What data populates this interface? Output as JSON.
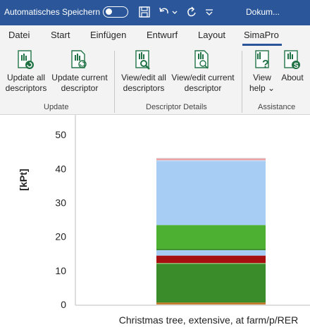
{
  "titlebar": {
    "autosave_label": "Automatisches Speichern",
    "doc_title": "Dokum..."
  },
  "tabs": [
    {
      "label": "Datei"
    },
    {
      "label": "Start"
    },
    {
      "label": "Einfügen"
    },
    {
      "label": "Entwurf"
    },
    {
      "label": "Layout"
    },
    {
      "label": "SimaPro",
      "active": true
    }
  ],
  "ribbon": {
    "groups": [
      {
        "label": "Update",
        "buttons": [
          {
            "line1": "Update all",
            "line2": "descriptors",
            "icon": "update-all-icon"
          },
          {
            "line1": "Update current",
            "line2": "descriptor",
            "icon": "update-current-icon"
          }
        ]
      },
      {
        "label": "Descriptor Details",
        "buttons": [
          {
            "line1": "View/edit all",
            "line2": "descriptors",
            "icon": "view-edit-all-icon"
          },
          {
            "line1": "View/edit current",
            "line2": "descriptor",
            "icon": "view-edit-current-icon"
          }
        ]
      },
      {
        "label": "Assistance",
        "buttons": [
          {
            "line1": "View",
            "line2": "help",
            "icon": "help-icon",
            "dropdown": true
          },
          {
            "line1": "About",
            "line2": "",
            "icon": "about-icon"
          }
        ]
      }
    ]
  },
  "colors": {
    "titlebar": "#2b579a",
    "accent_green": "#217346",
    "ribbon_bg": "#f3f3f3"
  },
  "chart_data": {
    "type": "bar",
    "stacked": true,
    "categories": [
      "Christmas tree, extensive, at farm/p/RER"
    ],
    "ylabel": "[kPt]",
    "ylim": [
      0,
      55
    ],
    "yticks": [
      0,
      10,
      20,
      30,
      40,
      50
    ],
    "series": [
      {
        "values": [
          0.6
        ],
        "color": "#c07a2a"
      },
      {
        "values": [
          11.4
        ],
        "color": "#3a8c2a"
      },
      {
        "values": [
          0.2
        ],
        "color": "#8fd07a"
      },
      {
        "values": [
          2.2
        ],
        "color": "#a61010"
      },
      {
        "values": [
          1.6
        ],
        "color": "#a7cdf5"
      },
      {
        "values": [
          0.4
        ],
        "color": "#3a8c2a"
      },
      {
        "values": [
          7.0
        ],
        "color": "#4db033"
      },
      {
        "values": [
          18.8
        ],
        "color": "#a7cdf5"
      },
      {
        "values": [
          0.3
        ],
        "color": "#bcd6f2"
      },
      {
        "values": [
          0.5
        ],
        "color": "#f0a0a0"
      },
      {
        "values": [
          0.2
        ],
        "color": "#d9d9d9"
      }
    ]
  }
}
